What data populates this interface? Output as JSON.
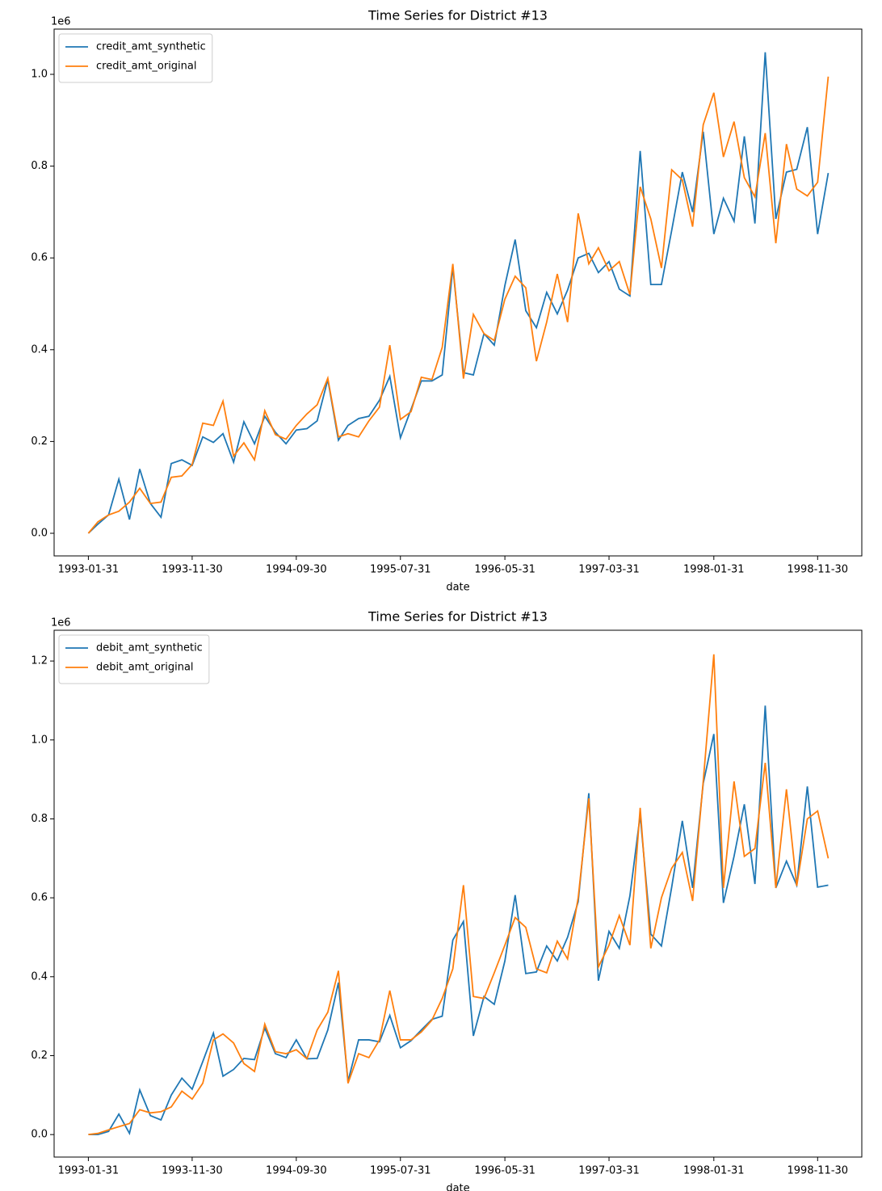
{
  "chart_data": [
    {
      "type": "line",
      "title": "Time Series for District #13",
      "xlabel": "date",
      "y_offset_label": "1e6",
      "legend": "upper left",
      "grid": false,
      "x": [
        "1993-01-31",
        "1993-02-28",
        "1993-03-31",
        "1993-04-30",
        "1993-05-31",
        "1993-06-30",
        "1993-07-31",
        "1993-08-31",
        "1993-09-30",
        "1993-10-31",
        "1993-11-30",
        "1993-12-31",
        "1994-01-31",
        "1994-02-28",
        "1994-03-31",
        "1994-04-30",
        "1994-05-31",
        "1994-06-30",
        "1994-07-31",
        "1994-08-31",
        "1994-09-30",
        "1994-10-31",
        "1994-11-30",
        "1994-12-31",
        "1995-01-31",
        "1995-02-28",
        "1995-03-31",
        "1995-04-30",
        "1995-05-31",
        "1995-06-30",
        "1995-07-31",
        "1995-08-31",
        "1995-09-30",
        "1995-10-31",
        "1995-11-30",
        "1995-12-31",
        "1996-01-31",
        "1996-02-29",
        "1996-03-31",
        "1996-04-30",
        "1996-05-31",
        "1996-06-30",
        "1996-07-31",
        "1996-08-31",
        "1996-09-30",
        "1996-10-31",
        "1996-11-30",
        "1996-12-31",
        "1997-01-31",
        "1997-02-28",
        "1997-03-31",
        "1997-04-30",
        "1997-05-31",
        "1997-06-30",
        "1997-07-31",
        "1997-08-31",
        "1997-09-30",
        "1997-10-31",
        "1997-11-30",
        "1997-12-31",
        "1998-01-31",
        "1998-02-28",
        "1998-03-31",
        "1998-04-30",
        "1998-05-31",
        "1998-06-30",
        "1998-07-31",
        "1998-08-31",
        "1998-09-30",
        "1998-10-31",
        "1998-11-30",
        "1998-12-31"
      ],
      "xlim": [
        "1992-10-23",
        "1999-04-08"
      ],
      "xticks": [
        "1993-01-31",
        "1993-11-30",
        "1994-09-30",
        "1995-07-31",
        "1996-05-31",
        "1997-03-31",
        "1998-01-31",
        "1998-11-30"
      ],
      "ylim": [
        -0.0493,
        1.0986
      ],
      "yticks": [
        {
          "value": 0,
          "label": "0.0"
        },
        0.2,
        0.4,
        0.6,
        0.8,
        {
          "value": 1,
          "label": "1.0"
        }
      ],
      "series": [
        {
          "name": "credit_amt_synthetic",
          "color": "#1f77b4",
          "values": [
            0.0,
            0.02,
            0.04,
            0.118,
            0.03,
            0.14,
            0.065,
            0.035,
            0.152,
            0.16,
            0.148,
            0.21,
            0.198,
            0.217,
            0.155,
            0.243,
            0.195,
            0.255,
            0.22,
            0.195,
            0.225,
            0.228,
            0.245,
            0.335,
            0.203,
            0.235,
            0.25,
            0.255,
            0.29,
            0.342,
            0.208,
            0.27,
            0.332,
            0.332,
            0.345,
            0.58,
            0.35,
            0.345,
            0.435,
            0.41,
            0.54,
            0.64,
            0.485,
            0.448,
            0.525,
            0.478,
            0.53,
            0.6,
            0.61,
            0.568,
            0.592,
            0.532,
            0.517,
            0.833,
            0.542,
            0.542,
            0.66,
            0.787,
            0.7,
            0.875,
            0.652,
            0.73,
            0.68,
            0.865,
            0.675,
            1.048,
            0.685,
            0.787,
            0.793,
            0.885,
            0.652,
            0.785
          ]
        },
        {
          "name": "credit_amt_original",
          "color": "#ff7f0e",
          "values": [
            0.0,
            0.025,
            0.04,
            0.048,
            0.068,
            0.098,
            0.065,
            0.068,
            0.122,
            0.125,
            0.15,
            0.24,
            0.235,
            0.288,
            0.168,
            0.197,
            0.16,
            0.267,
            0.215,
            0.205,
            0.235,
            0.26,
            0.28,
            0.338,
            0.21,
            0.217,
            0.21,
            0.245,
            0.275,
            0.41,
            0.248,
            0.265,
            0.34,
            0.335,
            0.405,
            0.587,
            0.337,
            0.477,
            0.435,
            0.42,
            0.51,
            0.56,
            0.535,
            0.375,
            0.46,
            0.565,
            0.46,
            0.697,
            0.587,
            0.622,
            0.572,
            0.592,
            0.52,
            0.755,
            0.685,
            0.578,
            0.792,
            0.77,
            0.668,
            0.89,
            0.96,
            0.82,
            0.897,
            0.775,
            0.733,
            0.872,
            0.632,
            0.848,
            0.75,
            0.735,
            0.765,
            0.995
          ]
        }
      ]
    },
    {
      "type": "line",
      "title": "Time Series for District #13",
      "xlabel": "date",
      "y_offset_label": "1e6",
      "legend": "upper left",
      "grid": false,
      "x": [
        "1993-01-31",
        "1993-02-28",
        "1993-03-31",
        "1993-04-30",
        "1993-05-31",
        "1993-06-30",
        "1993-07-31",
        "1993-08-31",
        "1993-09-30",
        "1993-10-31",
        "1993-11-30",
        "1993-12-31",
        "1994-01-31",
        "1994-02-28",
        "1994-03-31",
        "1994-04-30",
        "1994-05-31",
        "1994-06-30",
        "1994-07-31",
        "1994-08-31",
        "1994-09-30",
        "1994-10-31",
        "1994-11-30",
        "1994-12-31",
        "1995-01-31",
        "1995-02-28",
        "1995-03-31",
        "1995-04-30",
        "1995-05-31",
        "1995-06-30",
        "1995-07-31",
        "1995-08-31",
        "1995-09-30",
        "1995-10-31",
        "1995-11-30",
        "1995-12-31",
        "1996-01-31",
        "1996-02-29",
        "1996-03-31",
        "1996-04-30",
        "1996-05-31",
        "1996-06-30",
        "1996-07-31",
        "1996-08-31",
        "1996-09-30",
        "1996-10-31",
        "1996-11-30",
        "1996-12-31",
        "1997-01-31",
        "1997-02-28",
        "1997-03-31",
        "1997-04-30",
        "1997-05-31",
        "1997-06-30",
        "1997-07-31",
        "1997-08-31",
        "1997-09-30",
        "1997-10-31",
        "1997-11-30",
        "1997-12-31",
        "1998-01-31",
        "1998-02-28",
        "1998-03-31",
        "1998-04-30",
        "1998-05-31",
        "1998-06-30",
        "1998-07-31",
        "1998-08-31",
        "1998-09-30",
        "1998-10-31",
        "1998-11-30",
        "1998-12-31"
      ],
      "xlim": [
        "1992-10-23",
        "1999-04-08"
      ],
      "xticks": [
        "1993-01-31",
        "1993-11-30",
        "1994-09-30",
        "1995-07-31",
        "1996-05-31",
        "1997-03-31",
        "1998-01-31",
        "1998-11-30"
      ],
      "ylim": [
        -0.057,
        1.278
      ],
      "yticks": [
        {
          "value": 0,
          "label": "0.0"
        },
        0.2,
        0.4,
        0.6,
        0.8,
        {
          "value": 1,
          "label": "1.0"
        },
        1.2
      ],
      "series": [
        {
          "name": "debit_amt_synthetic",
          "color": "#1f77b4",
          "values": [
            0.0,
            0.0,
            0.008,
            0.052,
            0.003,
            0.113,
            0.048,
            0.037,
            0.1,
            0.143,
            0.115,
            0.185,
            0.257,
            0.148,
            0.165,
            0.193,
            0.19,
            0.27,
            0.205,
            0.195,
            0.24,
            0.192,
            0.193,
            0.265,
            0.385,
            0.135,
            0.24,
            0.24,
            0.235,
            0.302,
            0.22,
            0.238,
            0.265,
            0.292,
            0.3,
            0.493,
            0.54,
            0.25,
            0.35,
            0.33,
            0.44,
            0.607,
            0.408,
            0.412,
            0.478,
            0.44,
            0.5,
            0.59,
            0.865,
            0.39,
            0.515,
            0.472,
            0.605,
            0.81,
            0.508,
            0.478,
            0.627,
            0.795,
            0.625,
            0.89,
            1.015,
            0.587,
            0.705,
            0.837,
            0.635,
            1.087,
            0.625,
            0.693,
            0.632,
            0.882,
            0.627,
            0.632
          ]
        },
        {
          "name": "debit_amt_original",
          "color": "#ff7f0e",
          "values": [
            0.0,
            0.003,
            0.012,
            0.02,
            0.028,
            0.063,
            0.055,
            0.058,
            0.07,
            0.11,
            0.09,
            0.13,
            0.24,
            0.255,
            0.232,
            0.18,
            0.16,
            0.28,
            0.21,
            0.205,
            0.215,
            0.192,
            0.265,
            0.31,
            0.415,
            0.13,
            0.205,
            0.195,
            0.24,
            0.365,
            0.24,
            0.24,
            0.26,
            0.29,
            0.345,
            0.42,
            0.632,
            0.35,
            0.345,
            0.41,
            0.48,
            0.55,
            0.525,
            0.42,
            0.41,
            0.49,
            0.445,
            0.6,
            0.852,
            0.425,
            0.48,
            0.555,
            0.48,
            0.828,
            0.472,
            0.6,
            0.675,
            0.715,
            0.592,
            0.895,
            1.217,
            0.625,
            0.895,
            0.705,
            0.725,
            0.942,
            0.625,
            0.875,
            0.63,
            0.8,
            0.82,
            0.7
          ]
        }
      ]
    }
  ]
}
